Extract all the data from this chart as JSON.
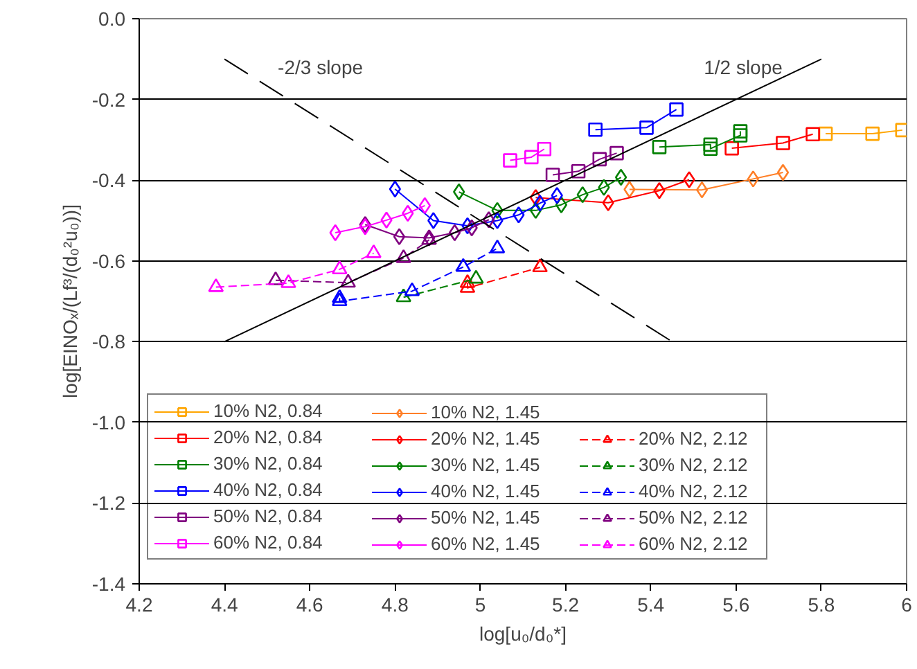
{
  "chart_data": {
    "type": "line",
    "xlabel": "log[u₀/d₀*]",
    "ylabel": "log[EINOₓ/(Lf³/(d₀²u₀))]",
    "xlim": [
      4.2,
      6.0
    ],
    "ylim": [
      -1.4,
      0.0
    ],
    "xticks": [
      4.2,
      4.4,
      4.6,
      4.8,
      5,
      5.2,
      5.4,
      5.6,
      5.8,
      6
    ],
    "yticks": [
      {
        "value": -1.4,
        "label": "-1.4"
      },
      {
        "value": -1.2,
        "label": "-1.2"
      },
      {
        "value": -1.0,
        "label": "-1.0"
      },
      {
        "value": -0.8,
        "label": "-0.8"
      },
      {
        "value": -0.6,
        "label": "-0.6"
      },
      {
        "value": -0.4,
        "label": "-0.4"
      },
      {
        "value": -0.2,
        "label": "-0.2"
      },
      {
        "value": 0.0,
        "label": "0.0"
      }
    ],
    "grid": "y",
    "legend": "bottom",
    "annotations": [
      "-2/3 slope",
      "1/2 slope"
    ],
    "series": [
      {
        "name": "10% N2, 0.84",
        "color": "#ffa500",
        "marker": "square",
        "line_style": "solid",
        "x": [
          5.81,
          5.92,
          5.99
        ],
        "values": [
          -0.285,
          -0.285,
          -0.276
        ]
      },
      {
        "name": "20% N2, 0.84",
        "color": "#ff0000",
        "marker": "square",
        "line_style": "solid",
        "x": [
          5.59,
          5.71,
          5.78
        ],
        "values": [
          -0.321,
          -0.308,
          -0.286
        ]
      },
      {
        "name": "30% N2, 0.84",
        "color": "#008000",
        "marker": "square",
        "line_style": "solid",
        "x": [
          5.42,
          5.54,
          5.54,
          5.61,
          5.61
        ],
        "values": [
          -0.318,
          -0.312,
          -0.322,
          -0.289,
          -0.279
        ]
      },
      {
        "name": "40% N2, 0.84",
        "color": "#0000ff",
        "marker": "square",
        "line_style": "solid",
        "x": [
          5.27,
          5.39,
          5.46
        ],
        "values": [
          -0.275,
          -0.27,
          -0.225
        ]
      },
      {
        "name": "50% N2, 0.84",
        "color": "#800080",
        "marker": "square",
        "line_style": "solid",
        "x": [
          5.17,
          5.23,
          5.28,
          5.32
        ],
        "values": [
          -0.387,
          -0.378,
          -0.348,
          -0.333
        ]
      },
      {
        "name": "60% N2, 0.84",
        "color": "#ff00ff",
        "marker": "square",
        "line_style": "solid",
        "x": [
          5.07,
          5.12,
          5.15
        ],
        "values": [
          -0.351,
          -0.343,
          -0.323
        ]
      },
      {
        "name": "10% N2, 1.45",
        "color": "#ff7f27",
        "marker": "diamond",
        "line_style": "solid",
        "x": [
          5.35,
          5.52,
          5.64,
          5.71
        ],
        "values": [
          -0.423,
          -0.424,
          -0.397,
          -0.381
        ]
      },
      {
        "name": "20% N2, 1.45",
        "color": "#ff0000",
        "marker": "diamond",
        "line_style": "solid",
        "x": [
          5.13,
          5.3,
          5.42,
          5.49
        ],
        "values": [
          -0.443,
          -0.456,
          -0.426,
          -0.399
        ]
      },
      {
        "name": "30% N2, 1.45",
        "color": "#008000",
        "marker": "diamond",
        "line_style": "solid",
        "x": [
          4.95,
          5.04,
          5.13,
          5.19,
          5.24,
          5.29,
          5.33
        ],
        "values": [
          -0.429,
          -0.475,
          -0.475,
          -0.461,
          -0.436,
          -0.418,
          -0.393
        ]
      },
      {
        "name": "40% N2, 1.45",
        "color": "#0000ff",
        "marker": "diamond",
        "line_style": "solid",
        "x": [
          4.8,
          4.89,
          4.97,
          5.04,
          5.09,
          5.14,
          5.18
        ],
        "values": [
          -0.422,
          -0.5,
          -0.513,
          -0.5,
          -0.486,
          -0.457,
          -0.438
        ]
      },
      {
        "name": "50% N2, 1.45",
        "color": "#800080",
        "marker": "diamond",
        "line_style": "solid",
        "x": [
          4.73,
          4.81,
          4.88,
          4.94,
          4.98,
          5.02
        ],
        "values": [
          -0.51,
          -0.54,
          -0.543,
          -0.53,
          -0.518,
          -0.498
        ]
      },
      {
        "name": "60% N2, 1.45",
        "color": "#ff00ff",
        "marker": "diamond",
        "line_style": "solid",
        "x": [
          4.66,
          4.73,
          4.78,
          4.83,
          4.87
        ],
        "values": [
          -0.53,
          -0.515,
          -0.499,
          -0.482,
          -0.463
        ]
      },
      {
        "name": "20% N2, 2.12",
        "color": "#ff0000",
        "marker": "triangle",
        "line_style": "dashed",
        "x": [
          4.97,
          4.97,
          5.14
        ],
        "values": [
          -0.655,
          -0.667,
          -0.616
        ]
      },
      {
        "name": "30% N2, 2.12",
        "color": "#008000",
        "marker": "triangle",
        "line_style": "dashed",
        "x": [
          4.82,
          4.99
        ],
        "values": [
          -0.69,
          -0.644
        ]
      },
      {
        "name": "40% N2, 2.12",
        "color": "#0000ff",
        "marker": "triangle",
        "line_style": "dashed",
        "x": [
          4.67,
          4.67,
          4.84,
          4.96,
          5.04
        ],
        "values": [
          -0.692,
          -0.7,
          -0.675,
          -0.615,
          -0.569
        ]
      },
      {
        "name": "50% N2, 2.12",
        "color": "#800080",
        "marker": "triangle",
        "line_style": "dashed",
        "x": [
          4.52,
          4.69,
          4.82,
          4.88
        ],
        "values": [
          -0.648,
          -0.654,
          -0.593,
          -0.548
        ]
      },
      {
        "name": "60% N2, 2.12",
        "color": "#ff00ff",
        "marker": "triangle",
        "line_style": "dashed",
        "x": [
          4.38,
          4.55,
          4.67,
          4.75
        ],
        "values": [
          -0.665,
          -0.655,
          -0.621,
          -0.581
        ]
      },
      {
        "color": "#000000",
        "marker": "none",
        "line_style": "solid",
        "x": [
          4.4,
          5.8
        ],
        "values": [
          -0.8,
          -0.1
        ]
      },
      {
        "color": "#000000",
        "marker": "none",
        "line_style": "dashed",
        "x": [
          4.4,
          5.45
        ],
        "values": [
          -0.1,
          -0.8
        ]
      }
    ]
  }
}
